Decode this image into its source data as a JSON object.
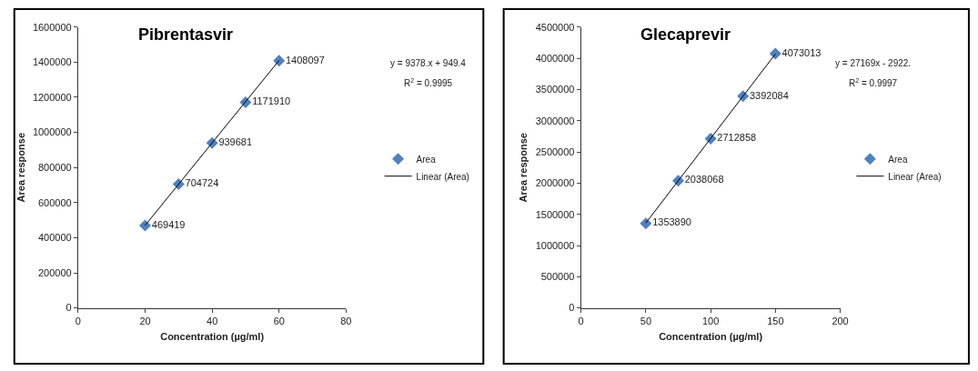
{
  "chart_data": [
    {
      "type": "scatter",
      "title": "Pibrentasvir",
      "xlabel": "Concentration (µg/ml)",
      "ylabel": "Area response",
      "legend": "right",
      "xlim": [
        0,
        80
      ],
      "xticks": [
        0,
        20,
        40,
        60,
        80
      ],
      "ylim": [
        0,
        1600000
      ],
      "yticks": [
        0,
        200000,
        400000,
        600000,
        800000,
        1000000,
        1200000,
        1400000,
        1600000
      ],
      "annotations": [
        "y = 9378.x + 949.4",
        "R$^{2}$ = 0.9995"
      ],
      "series": [
        {
          "name": "Area",
          "color": "#4f81bd",
          "marker": "diamond",
          "x": [
            20,
            30,
            40,
            50,
            60
          ],
          "values": [
            469419,
            704724,
            939681,
            1171910,
            1408097
          ],
          "value_labels": [
            "469419",
            "704724",
            "939681",
            "1171910",
            "1408097"
          ]
        },
        {
          "name": "Linear (Area)",
          "type": "line",
          "marker": "none",
          "color": "#000000",
          "x": [
            20,
            60
          ],
          "values": [
            470000,
            1410000
          ]
        }
      ]
    },
    {
      "type": "scatter",
      "title": "Glecaprevir",
      "xlabel": "Concentration (µg/ml)",
      "ylabel": "Area response",
      "legend": "right",
      "xlim": [
        0,
        200
      ],
      "xticks": [
        0,
        50,
        100,
        150,
        200
      ],
      "ylim": [
        0,
        4500000
      ],
      "yticks": [
        0,
        500000,
        1000000,
        1500000,
        2000000,
        2500000,
        3000000,
        3500000,
        4000000,
        4500000
      ],
      "annotations": [
        "y = 27169x - 2922.",
        "R$^{2}$ = 0.9997"
      ],
      "series": [
        {
          "name": "Area",
          "color": "#4f81bd",
          "marker": "diamond",
          "x": [
            50,
            75,
            100,
            125,
            150
          ],
          "values": [
            1353890,
            2038068,
            2712858,
            3392084,
            4073013
          ],
          "value_labels": [
            "1353890",
            "2038068",
            "2712858",
            "3392084",
            "4073013"
          ]
        },
        {
          "name": "Linear (Area)",
          "type": "line",
          "marker": "none",
          "color": "#000000",
          "x": [
            50,
            150
          ],
          "values": [
            1360000,
            4070000
          ]
        }
      ]
    }
  ]
}
